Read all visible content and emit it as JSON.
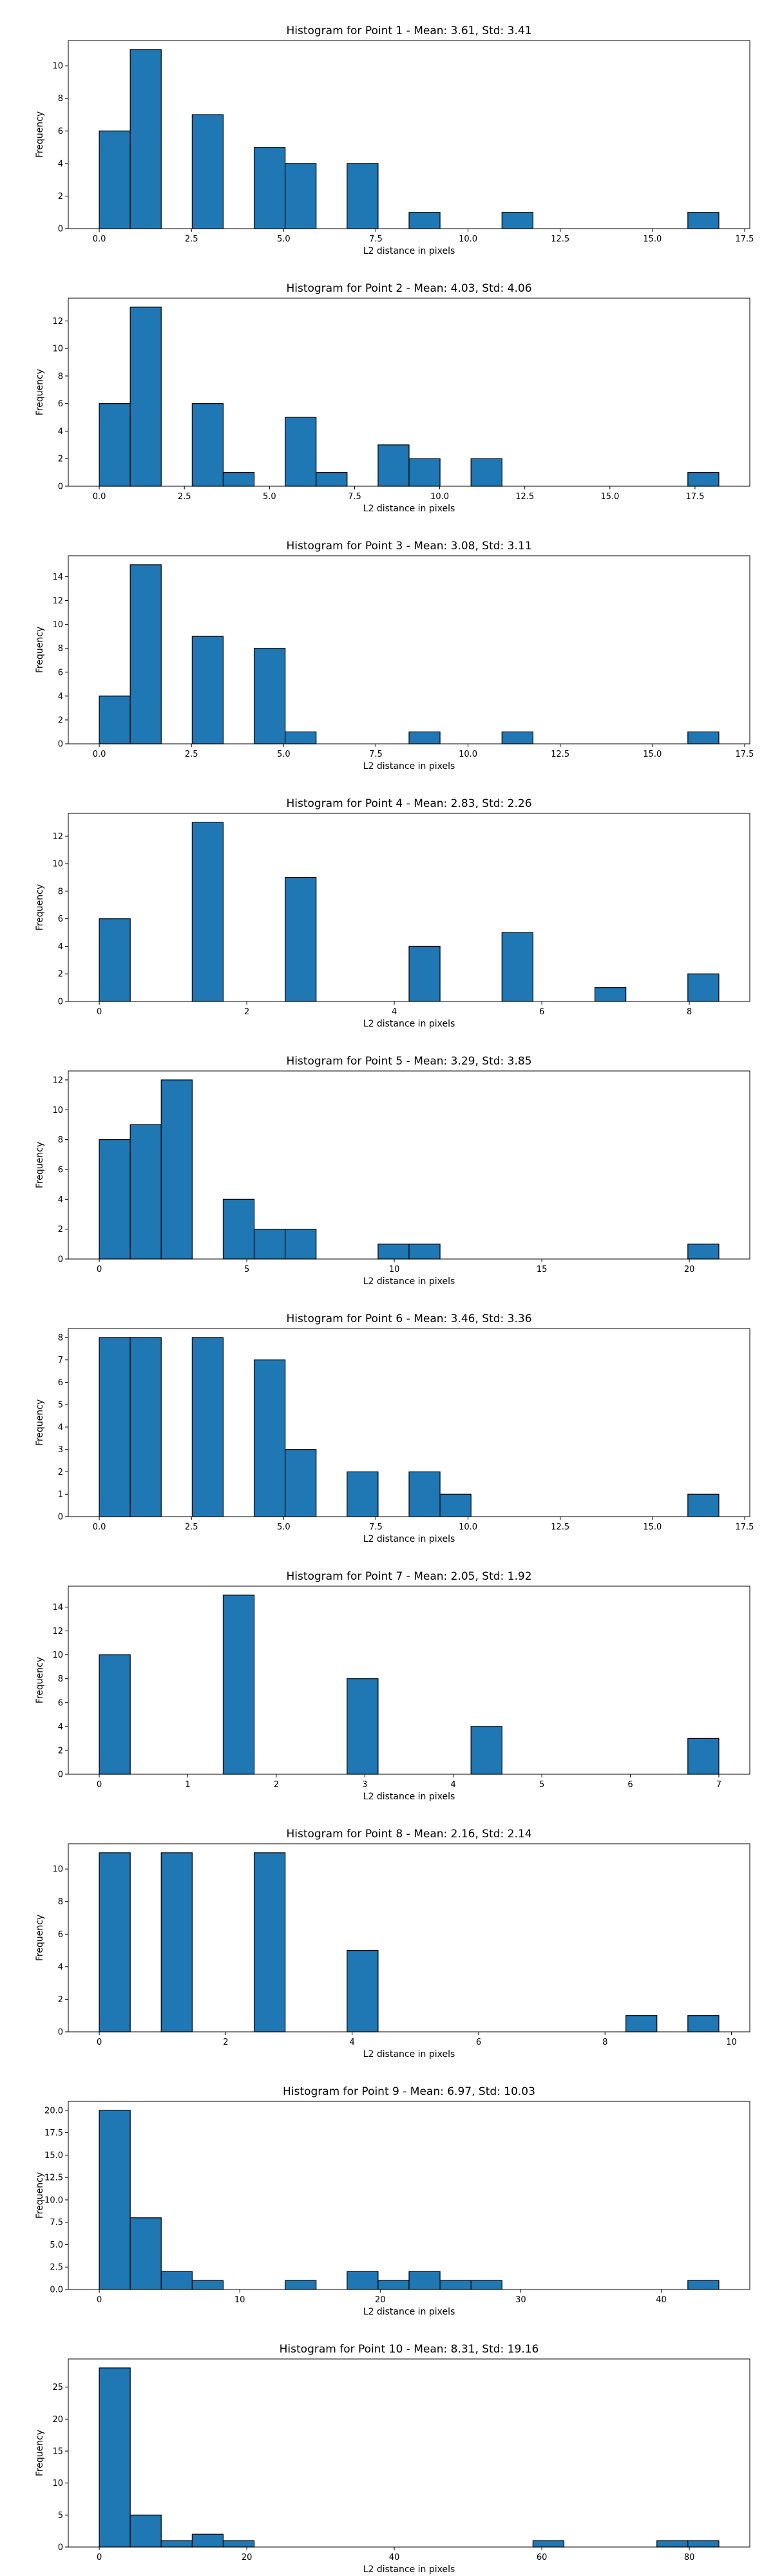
{
  "colors": {
    "bar_fill": "#1f77b4",
    "bar_edge": "#000000"
  },
  "chart_data": [
    {
      "type": "bar",
      "title": "Histogram for Point 1 - Mean: 3.61, Std: 3.41",
      "xlabel": "L2 distance in pixels",
      "ylabel": "Frequency",
      "xlim": [
        -0.84,
        17.64
      ],
      "ylim": [
        0,
        11.55
      ],
      "xticks": [
        0,
        2.5,
        5,
        7.5,
        10,
        12.5,
        15,
        17.5
      ],
      "xtick_labels": [
        "0.0",
        "2.5",
        "5.0",
        "7.5",
        "10.0",
        "12.5",
        "15.0",
        "17.5"
      ],
      "yticks": [
        0,
        2,
        4,
        6,
        8,
        10
      ],
      "ytick_labels": [
        "0",
        "2",
        "4",
        "6",
        "8",
        "10"
      ],
      "bins": [
        0,
        0.84,
        1.68,
        2.52,
        3.36,
        4.2,
        5.04,
        5.88,
        6.72,
        7.56,
        8.4,
        9.24,
        10.08,
        10.92,
        11.76,
        12.6,
        13.44,
        14.28,
        15.12,
        15.96,
        16.8
      ],
      "counts": [
        6,
        11,
        0,
        7,
        0,
        5,
        4,
        0,
        4,
        0,
        1,
        0,
        0,
        1,
        0,
        0,
        0,
        0,
        0,
        1
      ]
    },
    {
      "type": "bar",
      "title": "Histogram for Point 2 - Mean: 4.03, Std: 4.06",
      "xlabel": "L2 distance in pixels",
      "ylabel": "Frequency",
      "xlim": [
        -0.91,
        19.11
      ],
      "ylim": [
        0,
        13.65
      ],
      "xticks": [
        0,
        2.5,
        5,
        7.5,
        10,
        12.5,
        15,
        17.5
      ],
      "xtick_labels": [
        "0.0",
        "2.5",
        "5.0",
        "7.5",
        "10.0",
        "12.5",
        "15.0",
        "17.5"
      ],
      "yticks": [
        0,
        2,
        4,
        6,
        8,
        10,
        12
      ],
      "ytick_labels": [
        "0",
        "2",
        "4",
        "6",
        "8",
        "10",
        "12"
      ],
      "bins": [
        0,
        0.91,
        1.82,
        2.73,
        3.64,
        4.55,
        5.46,
        6.37,
        7.28,
        8.19,
        9.1,
        10.01,
        10.92,
        11.83,
        12.74,
        13.65,
        14.56,
        15.47,
        16.38,
        17.29,
        18.2
      ],
      "counts": [
        6,
        13,
        0,
        6,
        1,
        0,
        5,
        1,
        0,
        3,
        2,
        0,
        2,
        0,
        0,
        0,
        0,
        0,
        0,
        1
      ]
    },
    {
      "type": "bar",
      "title": "Histogram for Point 3 - Mean: 3.08, Std: 3.11",
      "xlabel": "L2 distance in pixels",
      "ylabel": "Frequency",
      "xlim": [
        -0.84,
        17.64
      ],
      "ylim": [
        0,
        15.75
      ],
      "xticks": [
        0,
        2.5,
        5,
        7.5,
        10,
        12.5,
        15,
        17.5
      ],
      "xtick_labels": [
        "0.0",
        "2.5",
        "5.0",
        "7.5",
        "10.0",
        "12.5",
        "15.0",
        "17.5"
      ],
      "yticks": [
        0,
        2,
        4,
        6,
        8,
        10,
        12,
        14
      ],
      "ytick_labels": [
        "0",
        "2",
        "4",
        "6",
        "8",
        "10",
        "12",
        "14"
      ],
      "bins": [
        0,
        0.84,
        1.68,
        2.52,
        3.36,
        4.2,
        5.04,
        5.88,
        6.72,
        7.56,
        8.4,
        9.24,
        10.08,
        10.92,
        11.76,
        12.6,
        13.44,
        14.28,
        15.12,
        15.96,
        16.8
      ],
      "counts": [
        4,
        15,
        0,
        9,
        0,
        8,
        1,
        0,
        0,
        0,
        1,
        0,
        0,
        1,
        0,
        0,
        0,
        0,
        0,
        1
      ]
    },
    {
      "type": "bar",
      "title": "Histogram for Point 4 - Mean: 2.83, Std: 2.26",
      "xlabel": "L2 distance in pixels",
      "ylabel": "Frequency",
      "xlim": [
        -0.42,
        8.82
      ],
      "ylim": [
        0,
        13.65
      ],
      "xticks": [
        0,
        2,
        4,
        6,
        8
      ],
      "xtick_labels": [
        "0",
        "2",
        "4",
        "6",
        "8"
      ],
      "yticks": [
        0,
        2,
        4,
        6,
        8,
        10,
        12
      ],
      "ytick_labels": [
        "0",
        "2",
        "4",
        "6",
        "8",
        "10",
        "12"
      ],
      "bins": [
        0,
        0.42,
        0.84,
        1.26,
        1.68,
        2.1,
        2.52,
        2.94,
        3.36,
        3.78,
        4.2,
        4.62,
        5.04,
        5.46,
        5.88,
        6.3,
        6.72,
        7.14,
        7.56,
        7.98,
        8.4
      ],
      "counts": [
        6,
        0,
        0,
        13,
        0,
        0,
        9,
        0,
        0,
        0,
        4,
        0,
        0,
        5,
        0,
        0,
        1,
        0,
        0,
        2
      ]
    },
    {
      "type": "bar",
      "title": "Histogram for Point 5 - Mean: 3.29, Std: 3.85",
      "xlabel": "L2 distance in pixels",
      "ylabel": "Frequency",
      "xlim": [
        -1.05,
        22.05
      ],
      "ylim": [
        0,
        12.6
      ],
      "xticks": [
        0,
        5,
        10,
        15,
        20
      ],
      "xtick_labels": [
        "0",
        "5",
        "10",
        "15",
        "20"
      ],
      "yticks": [
        0,
        2,
        4,
        6,
        8,
        10,
        12
      ],
      "ytick_labels": [
        "0",
        "2",
        "4",
        "6",
        "8",
        "10",
        "12"
      ],
      "bins": [
        0,
        1.05,
        2.1,
        3.15,
        4.2,
        5.25,
        6.3,
        7.35,
        8.4,
        9.45,
        10.5,
        11.55,
        12.6,
        13.65,
        14.7,
        15.75,
        16.8,
        17.85,
        18.9,
        19.95,
        21
      ],
      "counts": [
        8,
        9,
        12,
        0,
        4,
        2,
        2,
        0,
        0,
        1,
        1,
        0,
        0,
        0,
        0,
        0,
        0,
        0,
        0,
        1
      ]
    },
    {
      "type": "bar",
      "title": "Histogram for Point 6 - Mean: 3.46, Std: 3.36",
      "xlabel": "L2 distance in pixels",
      "ylabel": "Frequency",
      "xlim": [
        -0.84,
        17.64
      ],
      "ylim": [
        0,
        8.4
      ],
      "xticks": [
        0,
        2.5,
        5,
        7.5,
        10,
        12.5,
        15,
        17.5
      ],
      "xtick_labels": [
        "0.0",
        "2.5",
        "5.0",
        "7.5",
        "10.0",
        "12.5",
        "15.0",
        "17.5"
      ],
      "yticks": [
        0,
        1,
        2,
        3,
        4,
        5,
        6,
        7,
        8
      ],
      "ytick_labels": [
        "0",
        "1",
        "2",
        "3",
        "4",
        "5",
        "6",
        "7",
        "8"
      ],
      "bins": [
        0,
        0.84,
        1.68,
        2.52,
        3.36,
        4.2,
        5.04,
        5.88,
        6.72,
        7.56,
        8.4,
        9.24,
        10.08,
        10.92,
        11.76,
        12.6,
        13.44,
        14.28,
        15.12,
        15.96,
        16.8
      ],
      "counts": [
        8,
        8,
        0,
        8,
        0,
        7,
        3,
        0,
        2,
        0,
        2,
        1,
        0,
        0,
        0,
        0,
        0,
        0,
        0,
        1
      ]
    },
    {
      "type": "bar",
      "title": "Histogram for Point 7 - Mean: 2.05, Std: 1.92",
      "xlabel": "L2 distance in pixels",
      "ylabel": "Frequency",
      "xlim": [
        -0.35,
        7.35
      ],
      "ylim": [
        0,
        15.75
      ],
      "xticks": [
        0,
        1,
        2,
        3,
        4,
        5,
        6,
        7
      ],
      "xtick_labels": [
        "0",
        "1",
        "2",
        "3",
        "4",
        "5",
        "6",
        "7"
      ],
      "yticks": [
        0,
        2,
        4,
        6,
        8,
        10,
        12,
        14
      ],
      "ytick_labels": [
        "0",
        "2",
        "4",
        "6",
        "8",
        "10",
        "12",
        "14"
      ],
      "bins": [
        0,
        0.35,
        0.7,
        1.05,
        1.4,
        1.75,
        2.1,
        2.45,
        2.8,
        3.15,
        3.5,
        3.85,
        4.2,
        4.55,
        4.9,
        5.25,
        5.6,
        5.95,
        6.3,
        6.65,
        7
      ],
      "counts": [
        10,
        0,
        0,
        0,
        15,
        0,
        0,
        0,
        8,
        0,
        0,
        0,
        4,
        0,
        0,
        0,
        0,
        0,
        0,
        3
      ]
    },
    {
      "type": "bar",
      "title": "Histogram for Point 8 - Mean: 2.16, Std: 2.14",
      "xlabel": "L2 distance in pixels",
      "ylabel": "Frequency",
      "xlim": [
        -0.49,
        10.29
      ],
      "ylim": [
        0,
        11.55
      ],
      "xticks": [
        0,
        2,
        4,
        6,
        8,
        10
      ],
      "xtick_labels": [
        "0",
        "2",
        "4",
        "6",
        "8",
        "10"
      ],
      "yticks": [
        0,
        2,
        4,
        6,
        8,
        10
      ],
      "ytick_labels": [
        "0",
        "2",
        "4",
        "6",
        "8",
        "10"
      ],
      "bins": [
        0,
        0.49,
        0.98,
        1.47,
        1.96,
        2.45,
        2.94,
        3.43,
        3.92,
        4.41,
        4.9,
        5.39,
        5.88,
        6.37,
        6.86,
        7.35,
        7.84,
        8.33,
        8.82,
        9.31,
        9.8
      ],
      "counts": [
        11,
        0,
        11,
        0,
        0,
        11,
        0,
        0,
        5,
        0,
        0,
        0,
        0,
        0,
        0,
        0,
        0,
        1,
        0,
        1
      ]
    },
    {
      "type": "bar",
      "title": "Histogram for Point 9 - Mean: 6.97, Std: 10.03",
      "xlabel": "L2 distance in pixels",
      "ylabel": "Frequency",
      "xlim": [
        -2.205,
        46.305
      ],
      "ylim": [
        0,
        21
      ],
      "xticks": [
        0,
        10,
        20,
        30,
        40
      ],
      "xtick_labels": [
        "0",
        "10",
        "20",
        "30",
        "40"
      ],
      "yticks": [
        0,
        2.5,
        5,
        7.5,
        10,
        12.5,
        15,
        17.5,
        20
      ],
      "ytick_labels": [
        "0.0",
        "2.5",
        "5.0",
        "7.5",
        "10.0",
        "12.5",
        "15.0",
        "17.5",
        "20.0"
      ],
      "bins": [
        0,
        2.205,
        4.41,
        6.615,
        8.82,
        11.025,
        13.23,
        15.435,
        17.64,
        19.845,
        22.05,
        24.255,
        26.46,
        28.665,
        30.87,
        33.075,
        35.28,
        37.485,
        39.69,
        41.895,
        44.1
      ],
      "counts": [
        20,
        8,
        2,
        1,
        0,
        0,
        1,
        0,
        2,
        1,
        2,
        1,
        1,
        0,
        0,
        0,
        0,
        0,
        0,
        1
      ]
    },
    {
      "type": "bar",
      "title": "Histogram for Point 10 - Mean: 8.31, Std: 19.16",
      "xlabel": "L2 distance in pixels",
      "ylabel": "Frequency",
      "xlim": [
        -4.2,
        88.2
      ],
      "ylim": [
        0,
        29.4
      ],
      "xticks": [
        0,
        20,
        40,
        60,
        80
      ],
      "xtick_labels": [
        "0",
        "20",
        "40",
        "60",
        "80"
      ],
      "yticks": [
        0,
        5,
        10,
        15,
        20,
        25
      ],
      "ytick_labels": [
        "0",
        "5",
        "10",
        "15",
        "20",
        "25"
      ],
      "bins": [
        0,
        4.2,
        8.4,
        12.6,
        16.8,
        21,
        25.2,
        29.4,
        33.6,
        37.8,
        42,
        46.2,
        50.4,
        54.6,
        58.8,
        63,
        67.2,
        71.4,
        75.6,
        79.8,
        84
      ],
      "counts": [
        28,
        5,
        1,
        2,
        1,
        0,
        0,
        0,
        0,
        0,
        0,
        0,
        0,
        0,
        1,
        0,
        0,
        0,
        1,
        1
      ]
    }
  ]
}
